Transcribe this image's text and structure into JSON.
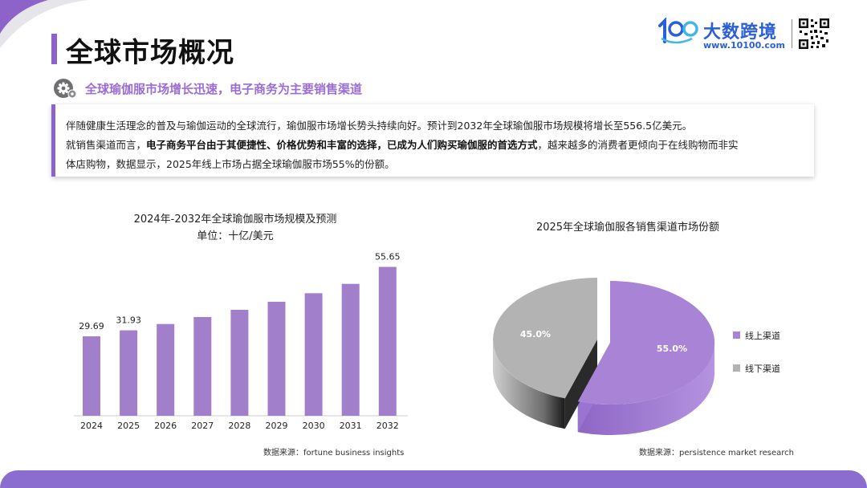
{
  "page": {
    "title": "全球市场概况",
    "subtitle": "全球瑜伽服市场增长迅速，电子商务为主要销售渠道",
    "intro": {
      "line1": "伴随健康生活理念的普及与瑜伽运动的全球流行，瑜伽服市场增长势头持续向好。预计到2032年全球瑜伽服市场规模将增长至556.5亿美元。",
      "line2_prefix": "就销售渠道而言，",
      "line2_bold": "电子商务平台由于其便捷性、价格优势和丰富的选择，已成为人们购买瑜伽服的首选方式",
      "line2_suffix": "，越来越多的消费者更倾向于在线购物而非实",
      "line3": "体店购物，数据显示，2025年线上市场占据全球瑜伽服市场55%的份额。"
    }
  },
  "logo": {
    "name": "大数跨境",
    "url": "www.10100.com",
    "mark_icon": "10100-logo-icon",
    "qr_icon": "qr-code-icon"
  },
  "colors": {
    "accent": "#8e63c9",
    "bar": "#a27fcb",
    "online": "#a984d6",
    "offline": "#b3b3b3",
    "footer": "#8b6ccf"
  },
  "chart_data": [
    {
      "type": "bar",
      "title": "2024年-2032年全球瑜伽服市场规模及预测",
      "subtitle": "单位：十亿/美元",
      "categories": [
        "2024",
        "2025",
        "2026",
        "2027",
        "2028",
        "2029",
        "2030",
        "2031",
        "2032"
      ],
      "values": [
        29.69,
        31.93,
        34.3,
        36.9,
        39.6,
        42.6,
        45.8,
        49.3,
        55.65
      ],
      "data_labels": [
        "29.69",
        "31.93",
        "",
        "",
        "",
        "",
        "",
        "",
        "55.65"
      ],
      "ylim": [
        0,
        60
      ],
      "grid": false,
      "source": "数据来源：fortune business insights"
    },
    {
      "type": "pie",
      "title": "2025年全球瑜伽服各销售渠道市场份额",
      "labels": [
        "线上渠道",
        "线下渠道"
      ],
      "values": [
        55.0,
        45.0
      ],
      "value_labels": [
        "55.0%",
        "45.0%"
      ],
      "legend": "right",
      "source": "数据来源：persistence market research"
    }
  ]
}
